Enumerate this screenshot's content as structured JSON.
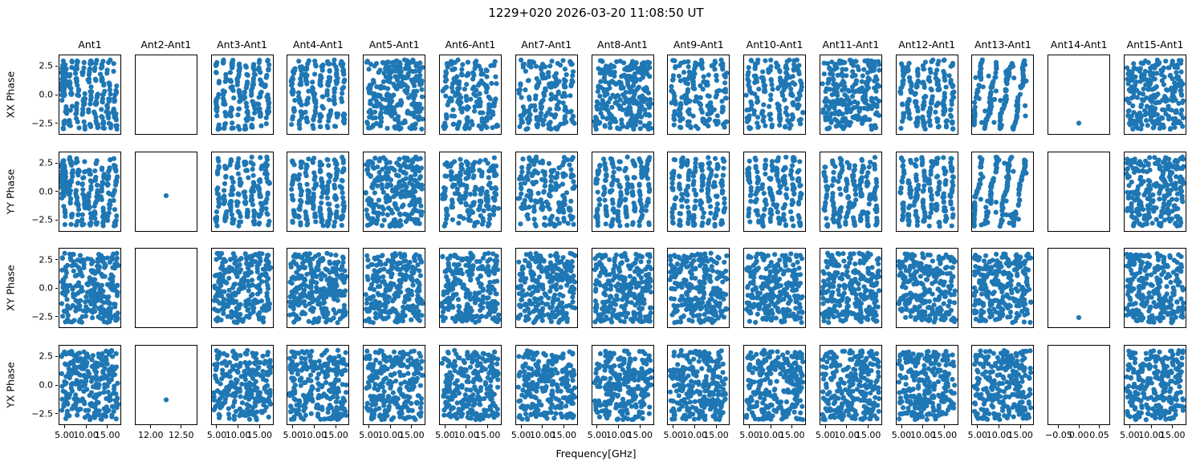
{
  "chart_data": {
    "type": "scatter",
    "title": "1229+020 2026-03-20 11:08:50 UT",
    "xlabel": "Frequency[GHz]",
    "dot_color": "#1f77b4",
    "background_color": "#ffffff",
    "axis_color": "#000000",
    "grid": "off",
    "layout": "4 rows x 15 columns of subplots, shared axes, y tick labels on first column only, x tick labels on bottom row only",
    "row_labels": [
      "XX Phase",
      "YY Phase",
      "XY Phase",
      "YX Phase"
    ],
    "col_titles": [
      "Ant1",
      "Ant2-Ant1",
      "Ant3-Ant1",
      "Ant4-Ant1",
      "Ant5-Ant1",
      "Ant6-Ant1",
      "Ant7-Ant1",
      "Ant8-Ant1",
      "Ant9-Ant1",
      "Ant10-Ant1",
      "Ant11-Ant1",
      "Ant12-Ant1",
      "Ant13-Ant1",
      "Ant14-Ant1",
      "Ant15-Ant1"
    ],
    "ylim": [
      -3.45,
      3.45
    ],
    "yticks": [
      {
        "v": 2.5,
        "label": "2.5"
      },
      {
        "v": 0.0,
        "label": "0.0"
      },
      {
        "v": -2.5,
        "label": "−2.5"
      }
    ],
    "x_axes": {
      "default": {
        "lim": [
          3.8,
          18.05
        ],
        "ticks": [
          {
            "v": 5,
            "label": "5.00"
          },
          {
            "v": 10,
            "label": "10.00"
          },
          {
            "v": 15,
            "label": "15.00"
          }
        ]
      },
      "ant2": {
        "lim": [
          11.75,
          12.75
        ],
        "ticks": [
          {
            "v": 12.0,
            "label": "12.00"
          },
          {
            "v": 12.5,
            "label": "12.50"
          }
        ]
      },
      "ant14": {
        "lim": [
          -0.075,
          0.075
        ],
        "ticks": [
          {
            "v": -0.05,
            "label": "−0.05"
          },
          {
            "v": 0.0,
            "label": "0.00"
          },
          {
            "v": 0.05,
            "label": "0.05"
          }
        ]
      }
    },
    "col_axis": [
      "default",
      "ant2",
      "default",
      "default",
      "default",
      "default",
      "default",
      "default",
      "default",
      "default",
      "default",
      "default",
      "default",
      "ant14",
      "default"
    ],
    "pattern_codes": {
      "E": "empty panel",
      "U": "dense uniform random scatter, x 4.3-17.6 GHz, phase -3.1..3.1 rad",
      "B": "vertical phase bands (~8 wiggly stripes across frequency)",
      "BB": "vertical phase bands (~9 stripes) plus dense cluster at left edge",
      "BL": "looser vertical bands with scattered points between",
      "D": "4 thick diagonal stripes leaning right with sparse extras",
      "S": "single data point (see single_points)"
    },
    "panels": [
      [
        "BB",
        "E",
        "B",
        "B",
        "U",
        "BL",
        "BL",
        "U",
        "BL",
        "BL",
        "U",
        "B",
        "D",
        "S",
        "U"
      ],
      [
        "BB",
        "S",
        "B",
        "B",
        "U",
        "BL",
        "BL",
        "B",
        "B",
        "B",
        "B",
        "B",
        "D",
        "E",
        "U"
      ],
      [
        "U",
        "E",
        "U",
        "U",
        "U",
        "U",
        "U",
        "U",
        "U",
        "U",
        "U",
        "U",
        "U",
        "S",
        "U"
      ],
      [
        "U",
        "S",
        "U",
        "U",
        "U",
        "U",
        "U",
        "U",
        "U",
        "U",
        "U",
        "U",
        "U",
        "E",
        "U"
      ]
    ],
    "single_points": {
      "0,13": {
        "x": 0.0,
        "y": -2.5
      },
      "1,1": {
        "x": 12.25,
        "y": -0.35
      },
      "2,13": {
        "x": 0.0,
        "y": -2.6
      },
      "3,1": {
        "x": 12.25,
        "y": -1.3
      }
    },
    "points_per_dense_panel": 260
  }
}
